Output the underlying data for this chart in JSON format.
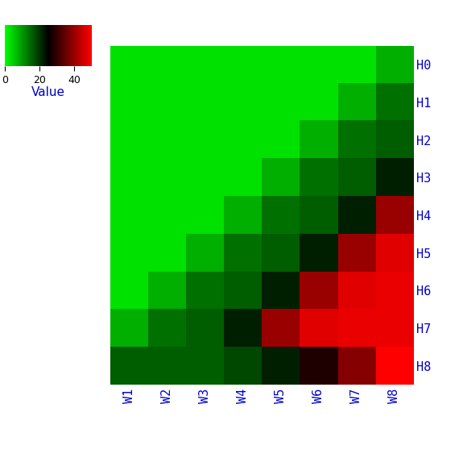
{
  "rows": [
    "H0",
    "H1",
    "H2",
    "H3",
    "H4",
    "H5",
    "H6",
    "H7",
    "H8"
  ],
  "cols": [
    "W1",
    "W2",
    "W3",
    "W4",
    "W5",
    "W6",
    "W7",
    "W8"
  ],
  "colorbar_label": "Value",
  "colorbar_ticks": [
    0,
    20,
    40
  ],
  "vmin": 0,
  "vmax": 50,
  "row_label_color": "#0000cc",
  "col_label_color": "#0000cc",
  "colorbar_label_color": "#0000cc",
  "figsize": [
    5.7,
    5.68
  ],
  "dpi": 100,
  "heatmap_data": [
    [
      2,
      2,
      2,
      2,
      2,
      2,
      2,
      8
    ],
    [
      2,
      2,
      2,
      2,
      2,
      2,
      8,
      12
    ],
    [
      2,
      2,
      2,
      2,
      2,
      8,
      12,
      14
    ],
    [
      2,
      2,
      2,
      2,
      8,
      12,
      14,
      16
    ],
    [
      2,
      2,
      2,
      8,
      12,
      14,
      16,
      38
    ],
    [
      2,
      2,
      8,
      12,
      14,
      16,
      38,
      45
    ],
    [
      2,
      8,
      12,
      14,
      16,
      38,
      45,
      48
    ],
    [
      8,
      12,
      14,
      16,
      38,
      45,
      48,
      48
    ],
    [
      14,
      14,
      14,
      16,
      20,
      30,
      40,
      55
    ]
  ]
}
